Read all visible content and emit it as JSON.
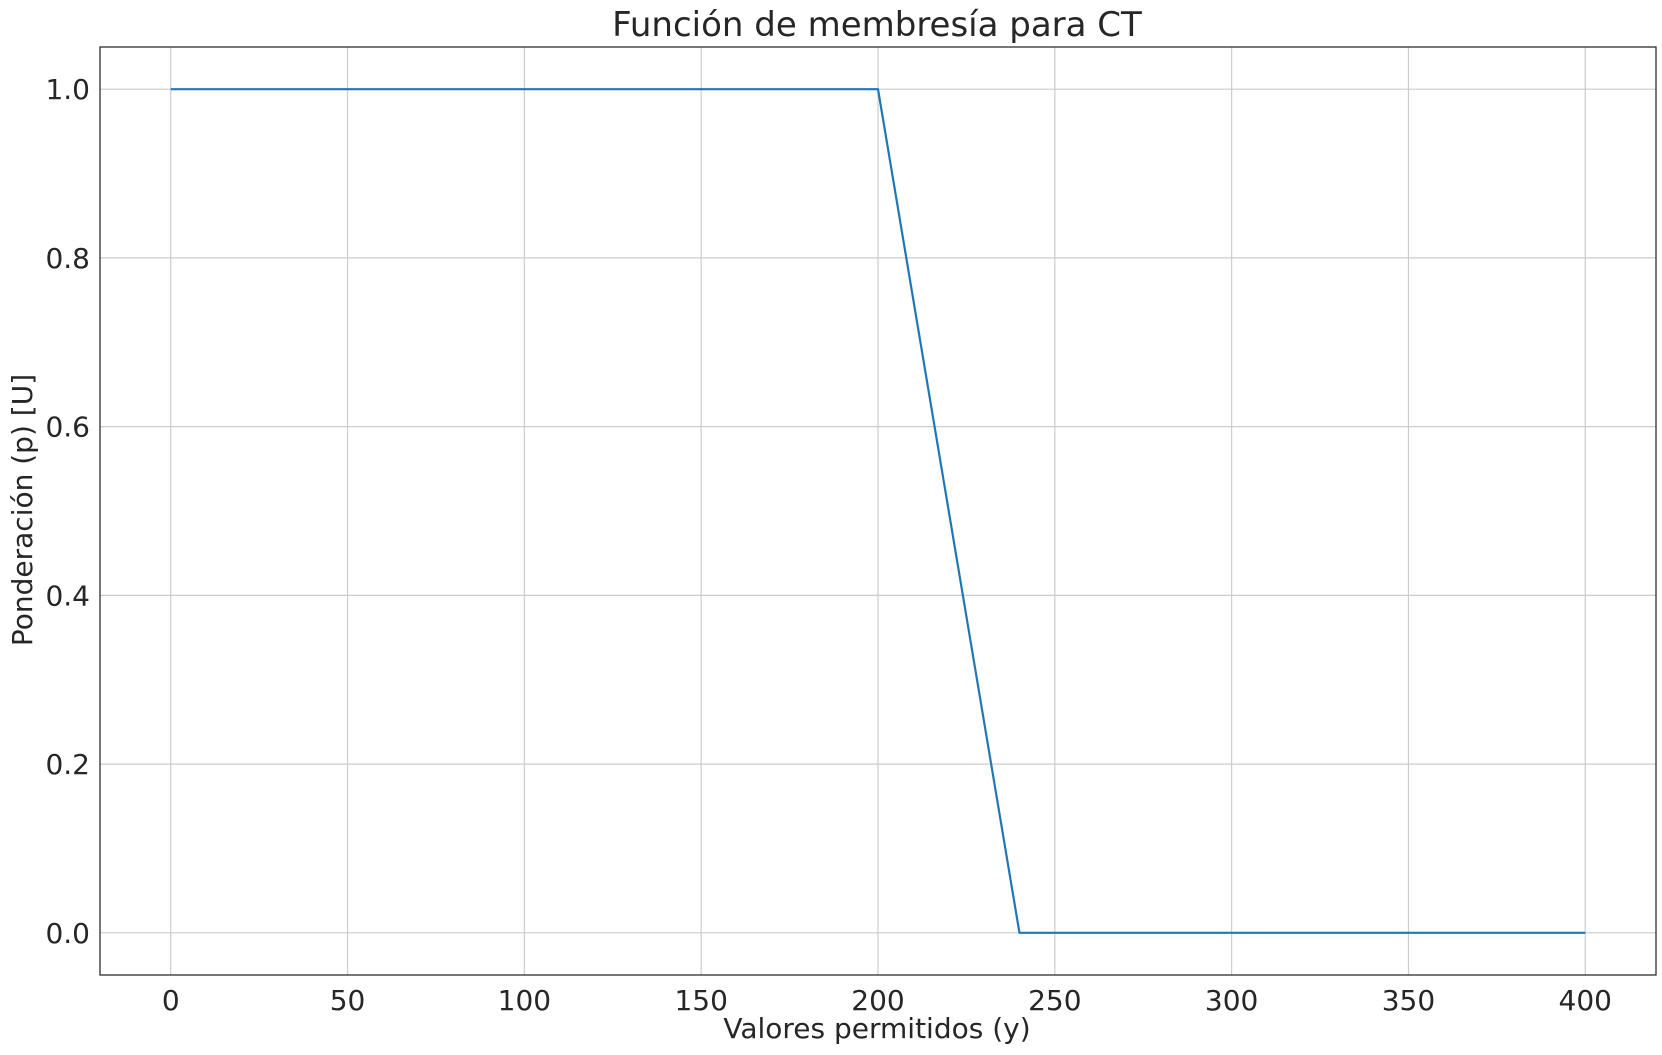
{
  "chart_data": {
    "type": "line",
    "title": "Función de membresía para CT",
    "xlabel": "Valores permitidos (y)",
    "ylabel": "Ponderación (p) [U]",
    "xlim": [
      -20,
      420
    ],
    "ylim": [
      -0.05,
      1.05
    ],
    "xticks": [
      0,
      50,
      100,
      150,
      200,
      250,
      300,
      350,
      400
    ],
    "xtick_labels": [
      "0",
      "50",
      "100",
      "150",
      "200",
      "250",
      "300",
      "350",
      "400"
    ],
    "yticks": [
      0.0,
      0.2,
      0.4,
      0.6,
      0.8,
      1.0
    ],
    "ytick_labels": [
      "0.0",
      "0.2",
      "0.4",
      "0.6",
      "0.8",
      "1.0"
    ],
    "grid": true,
    "legend": "none",
    "series": [
      {
        "color": "#1f77b4",
        "x": [
          0,
          200,
          240,
          400
        ],
        "y": [
          1.0,
          1.0,
          0.0,
          0.0
        ]
      }
    ]
  }
}
